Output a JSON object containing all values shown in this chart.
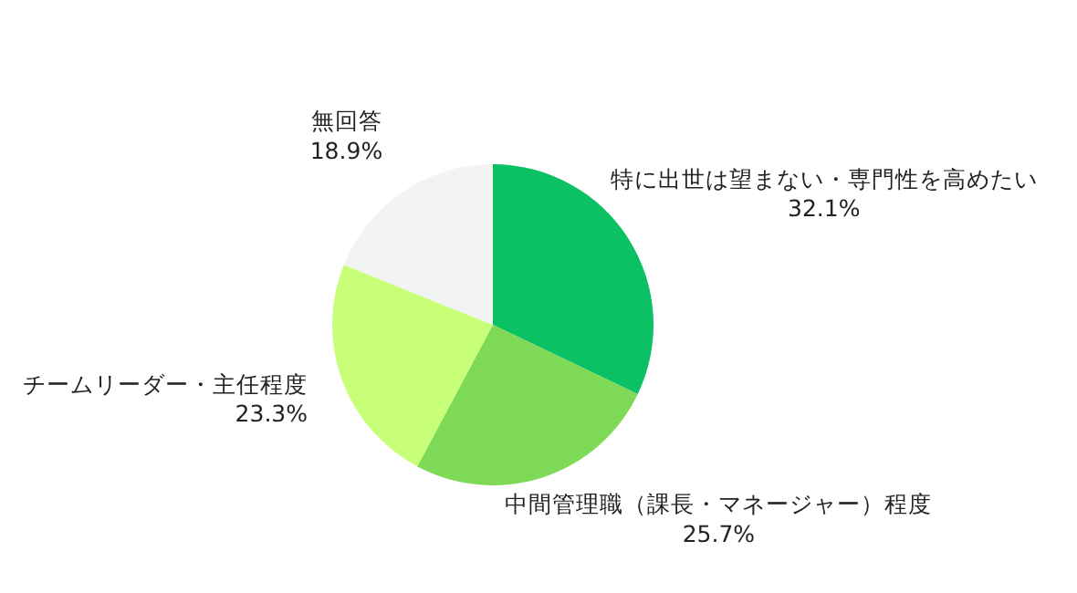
{
  "chart_data": {
    "type": "pie",
    "categories": [
      "特に出世は望まない・専門性を高めたい",
      "中間管理職（課長・マネージャー）程度",
      "チームリーダー・主任程度",
      "無回答"
    ],
    "values": [
      32.1,
      25.7,
      23.3,
      18.9
    ],
    "colors": [
      "#0cc064",
      "#7ed957",
      "#c8ff78",
      "#f2f3f3"
    ],
    "value_labels": [
      "32.1%",
      "25.7%",
      "23.3%",
      "18.9%"
    ],
    "legend": false
  }
}
